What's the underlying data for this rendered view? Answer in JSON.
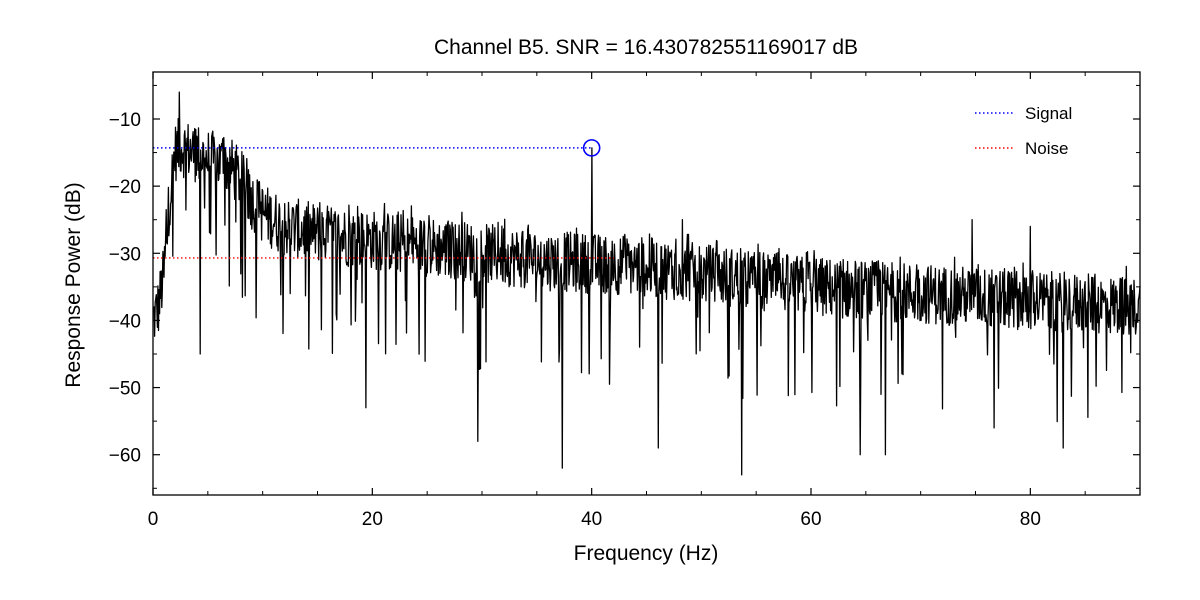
{
  "chart_data": {
    "type": "line",
    "title": "Channel B5. SNR = 16.430782551169017 dB",
    "xlabel": "Frequency (Hz)",
    "ylabel": "Response Power (dB)",
    "xlim": [
      0,
      90
    ],
    "ylim": [
      -66,
      -3
    ],
    "xticks": [
      0,
      20,
      40,
      60,
      80
    ],
    "xtick_labels": [
      "0",
      "20",
      "40",
      "60",
      "80"
    ],
    "yticks": [
      -10,
      -20,
      -30,
      -40,
      -50,
      -60
    ],
    "ytick_labels": [
      "−10",
      "−20",
      "−30",
      "−40",
      "−50",
      "−60"
    ],
    "grid": false,
    "legend_position": "top-right",
    "spectrum": {
      "name": "",
      "color": "#000000",
      "x_range": [
        0,
        90
      ],
      "point_count": 1800,
      "trend_x": [
        0,
        0.5,
        1.0,
        1.5,
        2.0,
        2.5,
        3.0,
        4.0,
        5.0,
        6.0,
        7.0,
        8.0,
        9.0,
        10.0,
        12.0,
        15.0,
        20.0,
        25.0,
        30.0,
        35.0,
        40.0,
        45.0,
        50.0,
        55.0,
        60.0,
        65.0,
        70.0,
        75.0,
        80.0,
        85.0,
        90.0
      ],
      "trend_y": [
        -40,
        -38,
        -33,
        -22,
        -15,
        -14,
        -14.5,
        -15,
        -16,
        -16.5,
        -17,
        -19,
        -22,
        -24,
        -26,
        -27,
        -28,
        -29,
        -30,
        -31,
        -31.5,
        -32,
        -33,
        -34,
        -35,
        -35.5,
        -36,
        -36.5,
        -37,
        -37.5,
        -38
      ],
      "spikes": [
        {
          "x": 40.0,
          "y": -14.3
        },
        {
          "x": 37.3,
          "y": -62
        },
        {
          "x": 53.7,
          "y": -63
        },
        {
          "x": 29.6,
          "y": -58
        },
        {
          "x": 19.4,
          "y": -53
        },
        {
          "x": 46.1,
          "y": -59
        },
        {
          "x": 64.5,
          "y": -60
        },
        {
          "x": 66.8,
          "y": -60
        },
        {
          "x": 83.0,
          "y": -59
        },
        {
          "x": 76.7,
          "y": -56
        },
        {
          "x": 4.3,
          "y": -45
        },
        {
          "x": 2.4,
          "y": -6
        },
        {
          "x": 74.7,
          "y": -25
        },
        {
          "x": 80.0,
          "y": -26
        },
        {
          "x": 48.3,
          "y": -25
        }
      ]
    },
    "markers": [
      {
        "type": "circle",
        "x": 40.0,
        "y": -14.3,
        "color": "#0000ff"
      }
    ],
    "series": [
      {
        "name": "Signal",
        "style": "dotted",
        "color": "#0000ff",
        "y": -14.3,
        "x_range": [
          0,
          40.0
        ]
      },
      {
        "name": "Noise",
        "style": "dotted",
        "color": "#ff0000",
        "y": -30.7,
        "x_range": [
          0,
          42.0
        ]
      }
    ]
  }
}
